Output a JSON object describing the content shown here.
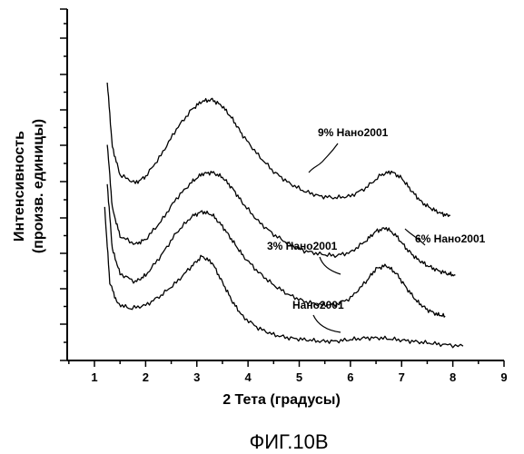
{
  "chart_data": {
    "type": "line",
    "xlabel": "2 Тета (градусы)",
    "ylabel_lines": [
      "Интенсивность",
      "(произв. единицы)"
    ],
    "caption": "ФИГ.10В",
    "xlim": [
      0.5,
      9
    ],
    "xticks": [
      "1",
      "2",
      "3",
      "4",
      "5",
      "6",
      "7",
      "8",
      "9"
    ],
    "y_ticks_unlabeled": true,
    "grid": false,
    "legend": "none; series labelled inline with leader lines",
    "series": [
      {
        "name": "9% Нано2001",
        "x": [
          1.25,
          1.35,
          1.5,
          1.8,
          2.0,
          2.3,
          2.6,
          2.9,
          3.1,
          3.3,
          3.5,
          3.7,
          3.9,
          4.2,
          4.5,
          4.8,
          5.1,
          5.4,
          5.7,
          6.0,
          6.3,
          6.6,
          6.8,
          7.0,
          7.2,
          7.4,
          7.6,
          7.8,
          7.95
        ],
        "rel_intensity": [
          0.85,
          0.45,
          0.28,
          0.23,
          0.27,
          0.4,
          0.56,
          0.68,
          0.73,
          0.74,
          0.7,
          0.62,
          0.52,
          0.4,
          0.3,
          0.23,
          0.18,
          0.15,
          0.14,
          0.15,
          0.2,
          0.28,
          0.3,
          0.26,
          0.18,
          0.11,
          0.07,
          0.04,
          0.03
        ]
      },
      {
        "name": "6% Нано2001",
        "x": [
          1.25,
          1.35,
          1.5,
          1.8,
          2.0,
          2.3,
          2.6,
          2.9,
          3.1,
          3.3,
          3.5,
          3.7,
          3.9,
          4.2,
          4.5,
          4.8,
          5.1,
          5.4,
          5.7,
          6.0,
          6.3,
          6.5,
          6.7,
          6.9,
          7.1,
          7.3,
          7.5,
          7.7,
          7.9,
          8.05
        ],
        "rel_intensity": [
          0.82,
          0.42,
          0.25,
          0.2,
          0.23,
          0.34,
          0.48,
          0.58,
          0.63,
          0.64,
          0.61,
          0.54,
          0.45,
          0.34,
          0.26,
          0.2,
          0.16,
          0.14,
          0.13,
          0.15,
          0.22,
          0.28,
          0.3,
          0.25,
          0.17,
          0.11,
          0.07,
          0.04,
          0.02,
          0.01
        ]
      },
      {
        "name": "3% Нано2001",
        "x": [
          1.25,
          1.35,
          1.5,
          1.8,
          2.0,
          2.3,
          2.6,
          2.9,
          3.1,
          3.3,
          3.5,
          3.7,
          3.9,
          4.2,
          4.5,
          4.8,
          5.1,
          5.4,
          5.7,
          6.0,
          6.3,
          6.5,
          6.7,
          6.9,
          7.1,
          7.3,
          7.5,
          7.7,
          7.85
        ],
        "rel_intensity": [
          0.82,
          0.42,
          0.27,
          0.22,
          0.26,
          0.38,
          0.52,
          0.62,
          0.65,
          0.63,
          0.56,
          0.47,
          0.38,
          0.28,
          0.2,
          0.14,
          0.1,
          0.08,
          0.08,
          0.12,
          0.22,
          0.3,
          0.32,
          0.27,
          0.18,
          0.1,
          0.05,
          0.02,
          0.01
        ]
      },
      {
        "name": "Нано2001",
        "x": [
          1.2,
          1.3,
          1.45,
          1.7,
          2.0,
          2.3,
          2.6,
          2.9,
          3.1,
          3.3,
          3.5,
          3.7,
          3.9,
          4.2,
          4.5,
          4.8,
          5.1,
          5.4,
          5.7,
          6.0,
          6.3,
          6.6,
          6.9,
          7.2,
          7.5,
          7.8,
          8.2
        ],
        "rel_intensity": [
          0.85,
          0.4,
          0.27,
          0.24,
          0.26,
          0.32,
          0.4,
          0.5,
          0.56,
          0.52,
          0.4,
          0.28,
          0.19,
          0.12,
          0.08,
          0.06,
          0.05,
          0.04,
          0.04,
          0.05,
          0.06,
          0.06,
          0.05,
          0.04,
          0.03,
          0.02,
          0.01
        ]
      }
    ]
  }
}
